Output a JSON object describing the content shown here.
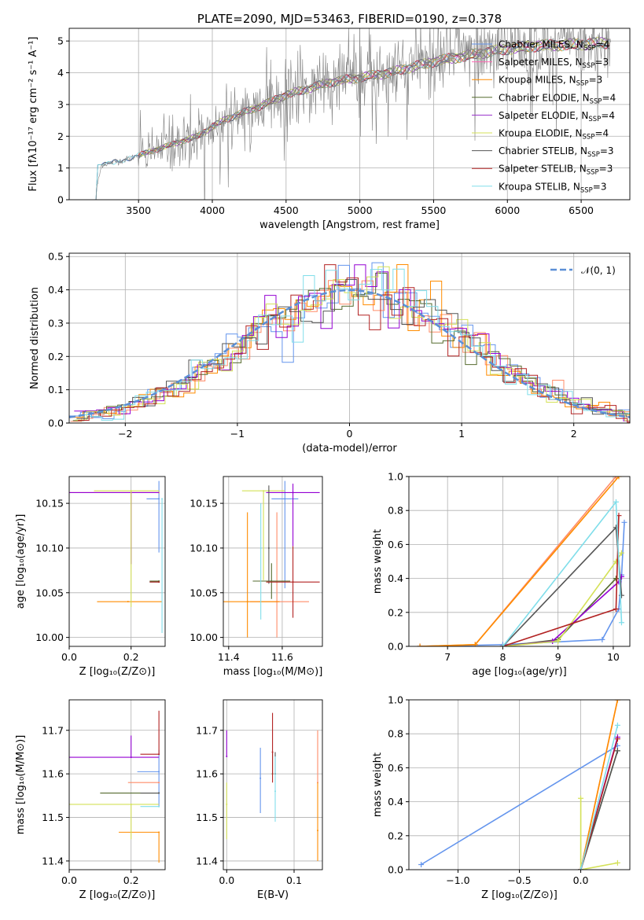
{
  "colors": [
    "#6495ED",
    "#FF8C69",
    "#FF8C00",
    "#556B2F",
    "#9400D3",
    "#D4E157",
    "#555555",
    "#B22222",
    "#80DEEA"
  ],
  "chart_data": [
    {
      "id": "spectrum",
      "type": "line",
      "title": "PLATE=2090, MJD=53463, FIBERID=0190, z=0.378",
      "xlabel": "wavelength [Angstrom, rest frame]",
      "ylabel": "Flux [fλ10⁻¹⁷ erg cm⁻² s⁻¹ A⁻¹]",
      "xlim": [
        3030,
        6830
      ],
      "ylim": [
        0,
        5.4
      ],
      "xticks": [
        3500,
        4000,
        4500,
        5000,
        5500,
        6000,
        6500
      ],
      "yticks": [
        0,
        1,
        2,
        3,
        4,
        5
      ],
      "legend": "top-right",
      "series": [
        {
          "name": "Chabrier MILES, N_SSP=4",
          "color": "#6495ED"
        },
        {
          "name": "Salpeter MILES, N_SSP=3",
          "color": "#FF69B4"
        },
        {
          "name": "Kroupa MILES, N_SSP=3",
          "color": "#FF8C00"
        },
        {
          "name": "Chabrier ELODIE, N_SSP=4",
          "color": "#556B2F"
        },
        {
          "name": "Salpeter ELODIE, N_SSP=4",
          "color": "#9932CC"
        },
        {
          "name": "Kroupa ELODIE, N_SSP=4",
          "color": "#D4E157"
        },
        {
          "name": "Chabrier STELIB, N_SSP=3",
          "color": "#555555"
        },
        {
          "name": "Salpeter STELIB, N_SSP=3",
          "color": "#B22222"
        },
        {
          "name": "Kroupa STELIB, N_SSP=3",
          "color": "#80DEEA"
        }
      ],
      "continuum": {
        "x": [
          3200,
          3250,
          3400,
          3500,
          3700,
          3900,
          4000,
          4100,
          4300,
          4500,
          4800,
          5000,
          5200,
          5500,
          5800,
          6000,
          6200,
          6500,
          6700
        ],
        "y": [
          0.0,
          1.1,
          1.25,
          1.4,
          1.7,
          2.0,
          2.3,
          2.55,
          2.9,
          3.3,
          3.7,
          3.85,
          4.0,
          4.35,
          4.6,
          4.75,
          4.85,
          4.9,
          4.95
        ]
      }
    },
    {
      "id": "residuals",
      "type": "line",
      "xlabel": "(data-model)/error",
      "ylabel": "Normed distribution",
      "xlim": [
        -2.5,
        2.5
      ],
      "ylim": [
        0,
        0.51
      ],
      "xticks": [
        -2,
        -1,
        0,
        1,
        2
      ],
      "yticks": [
        0.0,
        0.1,
        0.2,
        0.3,
        0.4,
        0.5
      ],
      "legend": "top-right",
      "gaussian_label": "𝒩(0, 1)"
    },
    {
      "id": "age_vs_z",
      "type": "scatter",
      "xlabel": "Z [log₁₀(Z/Z⊙)]",
      "ylabel": "age  [log₁₀(age/yr)]",
      "xlim": [
        0.0,
        0.31
      ],
      "ylim": [
        9.99,
        10.18
      ],
      "xticks": [
        0.0,
        0.2
      ],
      "yticks": [
        10.0,
        10.05,
        10.1,
        10.15
      ],
      "points": [
        {
          "x": 0.29,
          "y": 10.155,
          "xerr": [
            0.04,
            0.0
          ],
          "yerr": [
            0.06,
            0.02
          ],
          "c": 0
        },
        {
          "x": 0.29,
          "y": 10.162,
          "xerr": [
            0.29,
            0.0
          ],
          "yerr": [
            0.0,
            0.0
          ],
          "c": 1
        },
        {
          "x": 0.19,
          "y": 10.04,
          "xerr": [
            0.1,
            0.11
          ],
          "yerr": [
            0.0,
            0.0
          ],
          "c": 2
        },
        {
          "x": 0.29,
          "y": 10.063,
          "xerr": [
            0.03,
            0.0
          ],
          "yerr": [
            0.0,
            0.0
          ],
          "c": 3
        },
        {
          "x": 0.2,
          "y": 10.162,
          "xerr": [
            0.2,
            0.09
          ],
          "yerr": [
            0.08,
            0.0
          ],
          "c": 4
        },
        {
          "x": 0.2,
          "y": 10.164,
          "xerr": [
            0.12,
            0.09
          ],
          "yerr": [
            0.13,
            0.0
          ],
          "c": 5
        },
        {
          "x": 0.29,
          "y": 10.062,
          "xerr": [
            0.03,
            0.0
          ],
          "yerr": [
            0.0,
            0.0
          ],
          "c": 6
        },
        {
          "x": 0.29,
          "y": 10.062,
          "xerr": [
            0.03,
            0.0
          ],
          "yerr": [
            0.0,
            0.0
          ],
          "c": 7
        },
        {
          "x": 0.3,
          "y": 10.155,
          "xerr": [
            0.0,
            0.0
          ],
          "yerr": [
            0.15,
            0.0
          ],
          "c": 8
        }
      ]
    },
    {
      "id": "age_vs_mass",
      "type": "scatter",
      "xlabel": "mass [log₁₀(M/M⊙)]",
      "xlim": [
        11.38,
        11.75
      ],
      "ylim": [
        9.99,
        10.18
      ],
      "xticks": [
        11.4,
        11.6
      ],
      "yticks": [
        10.0,
        10.05,
        10.1,
        10.15
      ],
      "points": [
        {
          "x": 11.61,
          "y": 10.155,
          "xerr": [
            0.05,
            0.05
          ],
          "yerr": [
            0.1,
            0.02
          ],
          "c": 0
        },
        {
          "x": 11.58,
          "y": 10.04,
          "xerr": [
            0.1,
            0.12
          ],
          "yerr": [
            0.04,
            0.1
          ],
          "c": 1
        },
        {
          "x": 11.47,
          "y": 10.04,
          "xerr": [
            0.1,
            0.12
          ],
          "yerr": [
            0.04,
            0.1
          ],
          "c": 2
        },
        {
          "x": 11.56,
          "y": 10.063,
          "xerr": [
            0.07,
            0.07
          ],
          "yerr": [
            0.02,
            0.02
          ],
          "c": 3
        },
        {
          "x": 11.64,
          "y": 10.162,
          "xerr": [
            0.1,
            0.1
          ],
          "yerr": [
            0.06,
            0.01
          ],
          "c": 4
        },
        {
          "x": 11.53,
          "y": 10.164,
          "xerr": [
            0.08,
            0.08
          ],
          "yerr": [
            0.1,
            0.0
          ],
          "c": 5
        },
        {
          "x": 11.55,
          "y": 10.1,
          "xerr": [
            0.0,
            0.0
          ],
          "yerr": [
            0.04,
            0.07
          ],
          "c": 6
        },
        {
          "x": 11.64,
          "y": 10.062,
          "xerr": [
            0.1,
            0.1
          ],
          "yerr": [
            0.04,
            0.04
          ],
          "c": 7
        },
        {
          "x": 11.52,
          "y": 10.1,
          "xerr": [
            0.0,
            0.0
          ],
          "yerr": [
            0.08,
            0.05
          ],
          "c": 8
        }
      ]
    },
    {
      "id": "mass_weight_vs_age",
      "type": "line",
      "xlabel": "age  [log₁₀(age/yr)]",
      "ylabel": "mass weight",
      "xlim": [
        6.3,
        10.3
      ],
      "ylim": [
        0.0,
        1.0
      ],
      "xticks": [
        7,
        8,
        9,
        10
      ],
      "yticks": [
        0.0,
        0.2,
        0.4,
        0.6,
        0.8,
        1.0
      ],
      "series": [
        {
          "c": 0,
          "x": [
            6.5,
            8.0,
            9.8,
            10.1,
            10.15,
            10.2
          ],
          "y": [
            0.0,
            0.01,
            0.04,
            0.22,
            0.42,
            0.73
          ]
        },
        {
          "c": 1,
          "x": [
            6.5,
            7.5,
            10.05
          ],
          "y": [
            0.0,
            0.01,
            1.0
          ]
        },
        {
          "c": 2,
          "x": [
            6.5,
            7.5,
            10.1
          ],
          "y": [
            0.0,
            0.01,
            1.0
          ]
        },
        {
          "c": 3,
          "x": [
            8.0,
            9.0,
            10.05
          ],
          "y": [
            0.0,
            0.04,
            0.4
          ]
        },
        {
          "c": 4,
          "x": [
            8.0,
            8.9,
            10.1,
            10.15
          ],
          "y": [
            0.0,
            0.03,
            0.38,
            0.41
          ]
        },
        {
          "c": 5,
          "x": [
            8.0,
            9.0,
            10.05,
            10.15
          ],
          "y": [
            0.0,
            0.03,
            0.5,
            0.55
          ]
        },
        {
          "c": 6,
          "x": [
            8.0,
            10.05,
            10.15
          ],
          "y": [
            0.0,
            0.7,
            0.3
          ]
        },
        {
          "c": 7,
          "x": [
            8.0,
            10.05,
            10.1
          ],
          "y": [
            0.0,
            0.22,
            0.77
          ]
        },
        {
          "c": 8,
          "x": [
            8.0,
            10.05,
            10.15
          ],
          "y": [
            0.0,
            0.85,
            0.14
          ]
        }
      ]
    },
    {
      "id": "mass_vs_z",
      "type": "scatter",
      "xlabel": "Z [log₁₀(Z/Z⊙)]",
      "ylabel": "mass [log₁₀(M/M⊙)]",
      "xlim": [
        0.0,
        0.31
      ],
      "ylim": [
        11.38,
        11.77
      ],
      "xticks": [
        0.0,
        0.2
      ],
      "yticks": [
        11.4,
        11.5,
        11.6,
        11.7
      ],
      "points": [
        {
          "x": 0.29,
          "y": 11.605,
          "xerr": [
            0.07,
            0.0
          ],
          "yerr": [
            0.08,
            0.05
          ],
          "c": 0
        },
        {
          "x": 0.29,
          "y": 11.58,
          "xerr": [
            0.1,
            0.0
          ],
          "yerr": [
            0.0,
            0.0
          ],
          "c": 1
        },
        {
          "x": 0.29,
          "y": 11.466,
          "xerr": [
            0.13,
            0.0
          ],
          "yerr": [
            0.07,
            0.0
          ],
          "c": 2
        },
        {
          "x": 0.29,
          "y": 11.556,
          "xerr": [
            0.19,
            0.0
          ],
          "yerr": [
            0.0,
            0.0
          ],
          "c": 3
        },
        {
          "x": 0.2,
          "y": 11.638,
          "xerr": [
            0.2,
            0.09
          ],
          "yerr": [
            0.0,
            0.05
          ],
          "c": 4
        },
        {
          "x": 0.2,
          "y": 11.53,
          "xerr": [
            0.2,
            0.09
          ],
          "yerr": [
            0.08,
            0.0
          ],
          "c": 5
        },
        {
          "x": 0.29,
          "y": 11.556,
          "xerr": [
            0.06,
            0.0
          ],
          "yerr": [
            0.0,
            0.0
          ],
          "c": 6
        },
        {
          "x": 0.29,
          "y": 11.645,
          "xerr": [
            0.06,
            0.0
          ],
          "yerr": [
            0.0,
            0.1
          ],
          "c": 7
        },
        {
          "x": 0.29,
          "y": 11.525,
          "xerr": [
            0.06,
            0.0
          ],
          "yerr": [
            0.0,
            0.0
          ],
          "c": 8
        }
      ]
    },
    {
      "id": "mass_vs_ebv",
      "type": "scatter",
      "xlabel": "E(B-V)",
      "xlim": [
        -0.005,
        0.142
      ],
      "ylim": [
        11.38,
        11.77
      ],
      "xticks": [
        0.0,
        0.1
      ],
      "yticks": [
        11.4,
        11.5,
        11.6,
        11.7
      ],
      "points": [
        {
          "x": 0.05,
          "y": 11.59,
          "yerr": [
            0.08,
            0.07
          ],
          "c": 0
        },
        {
          "x": 0.135,
          "y": 11.58,
          "yerr": [
            0.0,
            0.12
          ],
          "c": 1
        },
        {
          "x": 0.135,
          "y": 11.47,
          "yerr": [
            0.07,
            0.11
          ],
          "c": 2
        },
        {
          "x": 0.068,
          "y": 11.6,
          "yerr": [
            0.0,
            0.05
          ],
          "c": 3
        },
        {
          "x": 0.0,
          "y": 11.64,
          "yerr": [
            0.0,
            0.06
          ],
          "c": 4
        },
        {
          "x": 0.0,
          "y": 11.53,
          "yerr": [
            0.08,
            0.05
          ],
          "c": 5
        },
        {
          "x": 0.072,
          "y": 11.6,
          "yerr": [
            0.0,
            0.05
          ],
          "c": 6
        },
        {
          "x": 0.068,
          "y": 11.65,
          "yerr": [
            0.07,
            0.09
          ],
          "c": 7
        },
        {
          "x": 0.072,
          "y": 11.56,
          "yerr": [
            0.07,
            0.08
          ],
          "c": 8
        }
      ]
    },
    {
      "id": "mass_weight_vs_z",
      "type": "line",
      "xlabel": "Z [log₁₀(Z/Z⊙)]",
      "ylabel": "mass weight",
      "xlim": [
        -1.4,
        0.4
      ],
      "ylim": [
        0.0,
        1.0
      ],
      "xticks": [
        -1.0,
        -0.5,
        0.0
      ],
      "yticks": [
        0.0,
        0.2,
        0.4,
        0.6,
        0.8,
        1.0
      ],
      "series": [
        {
          "c": 0,
          "x": [
            -1.3,
            0.3
          ],
          "y": [
            0.03,
            0.73
          ]
        },
        {
          "c": 1,
          "x": [
            0.0,
            0.3
          ],
          "y": [
            0.0,
            1.0
          ]
        },
        {
          "c": 2,
          "x": [
            0.0,
            0.3
          ],
          "y": [
            0.0,
            1.0
          ]
        },
        {
          "c": 3,
          "x": [
            0.0,
            0.3
          ],
          "y": [
            0.0,
            0.7
          ]
        },
        {
          "c": 4,
          "x": [
            0.0,
            0.3
          ],
          "y": [
            0.0,
            0.78
          ]
        },
        {
          "c": 5,
          "x": [
            0.0,
            0.0,
            0.3
          ],
          "y": [
            0.42,
            0.0,
            0.04
          ]
        },
        {
          "c": 6,
          "x": [
            0.0,
            0.3
          ],
          "y": [
            0.0,
            0.7
          ]
        },
        {
          "c": 7,
          "x": [
            0.0,
            0.3
          ],
          "y": [
            0.0,
            0.77
          ]
        },
        {
          "c": 8,
          "x": [
            0.0,
            0.3
          ],
          "y": [
            0.0,
            0.85
          ]
        }
      ]
    }
  ]
}
